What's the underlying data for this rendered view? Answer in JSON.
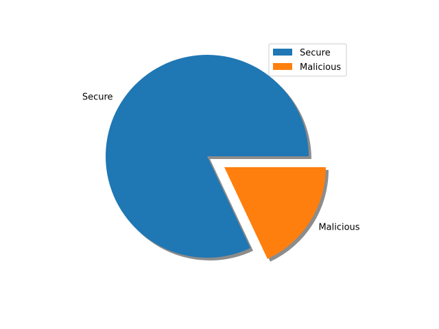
{
  "chart_data": {
    "type": "pie",
    "title": "",
    "labels": [
      "Secure",
      "Malicious"
    ],
    "values": [
      82,
      18
    ],
    "explode": [
      0,
      0.2
    ],
    "shadow": true,
    "start_angle_deg": 0,
    "colors": [
      "#1f77b4",
      "#ff7f0e"
    ],
    "legend": {
      "placement": "upper-right",
      "entries": [
        "Secure",
        "Malicious"
      ]
    }
  }
}
